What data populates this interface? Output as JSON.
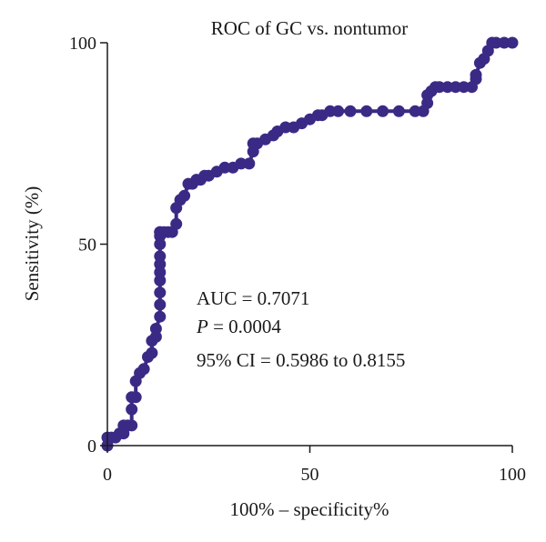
{
  "chart_data": {
    "type": "line",
    "title": "ROC of GC vs. nontumor",
    "xlabel": "100% – specificity%",
    "ylabel": "Sensitivity (%)",
    "xlim": [
      0,
      100
    ],
    "ylim": [
      0,
      100
    ],
    "x_ticks": [
      "0",
      "50",
      "100"
    ],
    "y_ticks": [
      "0",
      "50",
      "100"
    ],
    "grid": false,
    "series_color": "#3b2a85",
    "annotations": {
      "auc": "AUC = 0.7071",
      "p_label": "P",
      "p_value": " = 0.0004",
      "ci": "95% CI = 0.5986 to 0.8155"
    },
    "series": [
      {
        "x": [
          0,
          0,
          1,
          2,
          3,
          4,
          4,
          5,
          6,
          6,
          6,
          7,
          7,
          8,
          9,
          10,
          11,
          11,
          12,
          12,
          13,
          13,
          13,
          13,
          13,
          13,
          13,
          13,
          13,
          13,
          13,
          14,
          15,
          16,
          17,
          17,
          18,
          19,
          20,
          21,
          22,
          23,
          24,
          25,
          27,
          29,
          31,
          33,
          35,
          36,
          36,
          37,
          39,
          41,
          42,
          44,
          46,
          48,
          50,
          52,
          53,
          55,
          57,
          60,
          64,
          68,
          72,
          76,
          78,
          79,
          79,
          80,
          81,
          82,
          84,
          86,
          88,
          90,
          91,
          91,
          92,
          93,
          94,
          95,
          96,
          98,
          100
        ],
        "y": [
          0,
          2,
          2,
          2,
          3,
          3,
          5,
          5,
          5,
          9,
          12,
          12,
          16,
          18,
          19,
          22,
          23,
          26,
          27,
          29,
          32,
          35,
          38,
          41,
          43,
          45,
          47,
          50,
          52,
          53,
          53,
          53,
          53,
          53,
          55,
          59,
          61,
          62,
          65,
          65,
          66,
          66,
          67,
          67,
          68,
          69,
          69,
          70,
          70,
          73,
          75,
          75,
          76,
          77,
          78,
          79,
          79,
          80,
          81,
          82,
          82,
          83,
          83,
          83,
          83,
          83,
          83,
          83,
          83,
          85,
          87,
          88,
          89,
          89,
          89,
          89,
          89,
          89,
          91,
          92,
          95,
          96,
          98,
          100,
          100,
          100,
          100
        ]
      }
    ]
  }
}
